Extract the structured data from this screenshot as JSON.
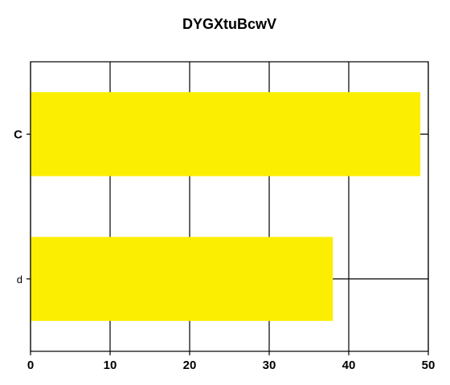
{
  "chart_data": {
    "type": "bar",
    "orientation": "horizontal",
    "title": "DYGXtuBcwV",
    "xlabel": "",
    "ylabel": "",
    "categories": [
      "C",
      "d"
    ],
    "values": [
      49,
      38
    ],
    "xlim": [
      0,
      50
    ],
    "x_ticks": [
      0,
      10,
      20,
      30,
      40,
      50
    ],
    "bar_color": "#fbee00",
    "grid": true,
    "legend": "none"
  }
}
